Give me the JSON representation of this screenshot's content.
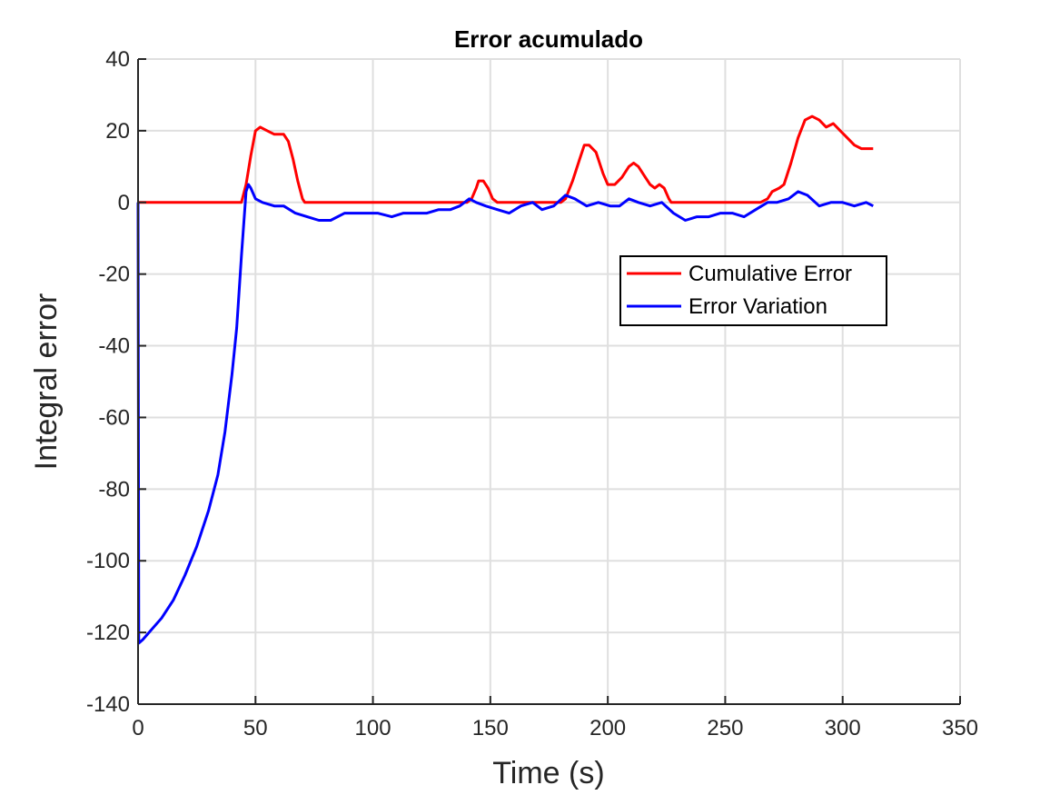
{
  "chart_data": {
    "type": "line",
    "title": "Error acumulado",
    "xlabel": "Time (s)",
    "ylabel": "Integral error",
    "xlim": [
      0,
      350
    ],
    "ylim": [
      -140,
      40
    ],
    "xticks": [
      0,
      50,
      100,
      150,
      200,
      250,
      300,
      350
    ],
    "yticks": [
      -140,
      -120,
      -100,
      -80,
      -60,
      -40,
      -20,
      0,
      20,
      40
    ],
    "grid": true,
    "legend_position": "right",
    "series": [
      {
        "name": "Cumulative Error",
        "color": "#ff0000",
        "x": [
          0,
          44,
          46,
          48,
          50,
          52,
          55,
          58,
          62,
          64,
          66,
          68,
          70,
          71,
          72,
          140,
          142,
          144,
          145,
          147,
          149,
          151,
          153,
          180,
          182,
          185,
          188,
          190,
          192,
          195,
          198,
          200,
          203,
          206,
          209,
          211,
          213,
          216,
          218,
          220,
          222,
          224,
          226,
          227,
          228,
          265,
          268,
          270,
          273,
          275,
          278,
          281,
          284,
          287,
          290,
          293,
          296,
          299,
          302,
          305,
          308,
          311,
          313
        ],
        "y": [
          0,
          0,
          5,
          13,
          20,
          21,
          20,
          19,
          19,
          17,
          12,
          6,
          1,
          0,
          0,
          0,
          1,
          4,
          6,
          6,
          4,
          1,
          0,
          0,
          1,
          6,
          12,
          16,
          16,
          14,
          8,
          5,
          5,
          7,
          10,
          11,
          10,
          7,
          5,
          4,
          5,
          4,
          1,
          0,
          0,
          0,
          1,
          3,
          4,
          5,
          11,
          18,
          23,
          24,
          23,
          21,
          22,
          20,
          18,
          16,
          15,
          15,
          15
        ]
      },
      {
        "name": "Error Variation",
        "color": "#0000ff",
        "x": [
          0,
          0.3,
          2,
          6,
          10,
          15,
          20,
          25,
          30,
          34,
          37,
          40,
          42,
          44,
          46,
          47,
          48,
          50,
          53,
          58,
          62,
          67,
          72,
          77,
          82,
          88,
          95,
          102,
          108,
          113,
          118,
          123,
          128,
          133,
          137,
          141,
          144,
          148,
          153,
          158,
          163,
          168,
          172,
          177,
          182,
          186,
          191,
          196,
          201,
          205,
          209,
          213,
          218,
          223,
          228,
          233,
          238,
          243,
          248,
          253,
          258,
          263,
          268,
          272,
          277,
          281,
          285,
          290,
          295,
          300,
          305,
          310,
          313
        ],
        "y": [
          0,
          -123,
          -122,
          -119,
          -116,
          -111,
          -104,
          -96,
          -86,
          -76,
          -64,
          -48,
          -35,
          -15,
          3,
          5,
          4,
          1,
          0,
          -1,
          -1,
          -3,
          -4,
          -5,
          -5,
          -3,
          -3,
          -3,
          -4,
          -3,
          -3,
          -3,
          -2,
          -2,
          -1,
          1,
          0,
          -1,
          -2,
          -3,
          -1,
          0,
          -2,
          -1,
          2,
          1,
          -1,
          0,
          -1,
          -1,
          1,
          0,
          -1,
          0,
          -3,
          -5,
          -4,
          -4,
          -3,
          -3,
          -4,
          -2,
          0,
          0,
          1,
          3,
          2,
          -1,
          0,
          0,
          -1,
          0,
          -1
        ]
      }
    ]
  }
}
